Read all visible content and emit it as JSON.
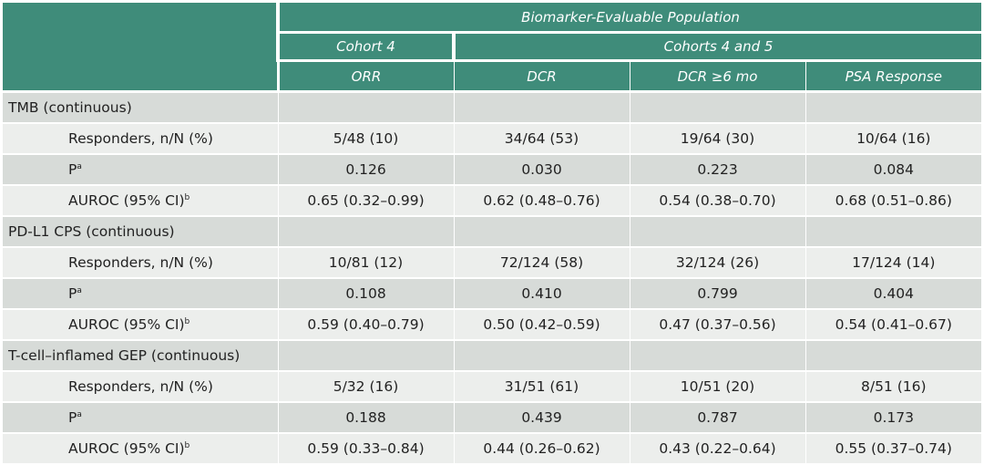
{
  "header": {
    "population": "Biomarker-Evaluable Population",
    "cohort4": "Cohort 4",
    "cohorts45": "Cohorts 4 and 5",
    "columns": [
      "ORR",
      "DCR",
      "DCR ≥6 mo",
      "PSA Response"
    ]
  },
  "sections": [
    {
      "title": "TMB (continuous)",
      "rows": [
        {
          "label": "Responders, n/N (%)",
          "sup": "",
          "values": [
            "5/48 (10)",
            "34/64 (53)",
            "19/64 (30)",
            "10/64 (16)"
          ]
        },
        {
          "label": "P",
          "sup": "a",
          "values": [
            "0.126",
            "0.030",
            "0.223",
            "0.084"
          ]
        },
        {
          "label": "AUROC (95% CI)",
          "sup": "b",
          "values": [
            "0.65 (0.32–0.99)",
            "0.62 (0.48–0.76)",
            "0.54 (0.38–0.70)",
            "0.68 (0.51–0.86)"
          ]
        }
      ]
    },
    {
      "title": "PD-L1 CPS (continuous)",
      "rows": [
        {
          "label": "Responders, n/N (%)",
          "sup": "",
          "values": [
            "10/81 (12)",
            "72/124 (58)",
            "32/124 (26)",
            "17/124 (14)"
          ]
        },
        {
          "label": "P",
          "sup": "a",
          "values": [
            "0.108",
            "0.410",
            "0.799",
            "0.404"
          ]
        },
        {
          "label": "AUROC (95% CI)",
          "sup": "b",
          "values": [
            "0.59 (0.40–0.79)",
            "0.50 (0.42–0.59)",
            "0.47 (0.37–0.56)",
            "0.54 (0.41–0.67)"
          ]
        }
      ]
    },
    {
      "title": "T-cell–inflamed GEP (continuous)",
      "rows": [
        {
          "label": "Responders, n/N (%)",
          "sup": "",
          "values": [
            "5/32 (16)",
            "31/51 (61)",
            "10/51 (20)",
            "8/51 (16)"
          ]
        },
        {
          "label": "P",
          "sup": "a",
          "values": [
            "0.188",
            "0.439",
            "0.787",
            "0.173"
          ]
        },
        {
          "label": "AUROC (95% CI)",
          "sup": "b",
          "values": [
            "0.59 (0.33–0.84)",
            "0.44 (0.26–0.62)",
            "0.43 (0.22–0.64)",
            "0.55 (0.37–0.74)"
          ]
        }
      ]
    }
  ],
  "colors": {
    "header": "#3f8c7a",
    "row_dark": "#d7dbd8",
    "row_light": "#eceeec"
  }
}
